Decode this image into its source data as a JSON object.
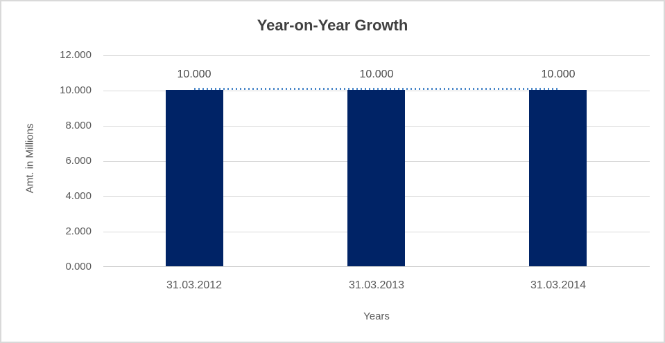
{
  "chart_data": {
    "type": "bar",
    "title": "Year-on-Year Growth",
    "categories": [
      "31.03.2012",
      "31.03.2013",
      "31.03.2014"
    ],
    "series": [
      {
        "type": "bar",
        "values": [
          10.0,
          10.0,
          10.0
        ],
        "color": "#002366"
      },
      {
        "type": "line",
        "style": "dotted",
        "values": [
          10.0,
          10.0,
          10.0
        ],
        "color": "#4a87c9"
      }
    ],
    "data_labels": [
      "10.000",
      "10.000",
      "10.000"
    ],
    "xlabel": "Years",
    "ylabel": "Amt. in Millions",
    "ylim": [
      0,
      12
    ],
    "yticks": [
      "12.000",
      "10.000",
      "8.000",
      "6.000",
      "4.000",
      "2.000",
      "0.000"
    ],
    "grid": true,
    "legend": "none"
  },
  "colors": {
    "bar": "#002366",
    "trend_line": "#4a87c9",
    "gridline": "#d9d9d9",
    "axis_line": "#cfcfcf",
    "tick_text": "#595959",
    "title_text": "#404040",
    "background": "#ffffff",
    "border": "#d9d9d9"
  }
}
